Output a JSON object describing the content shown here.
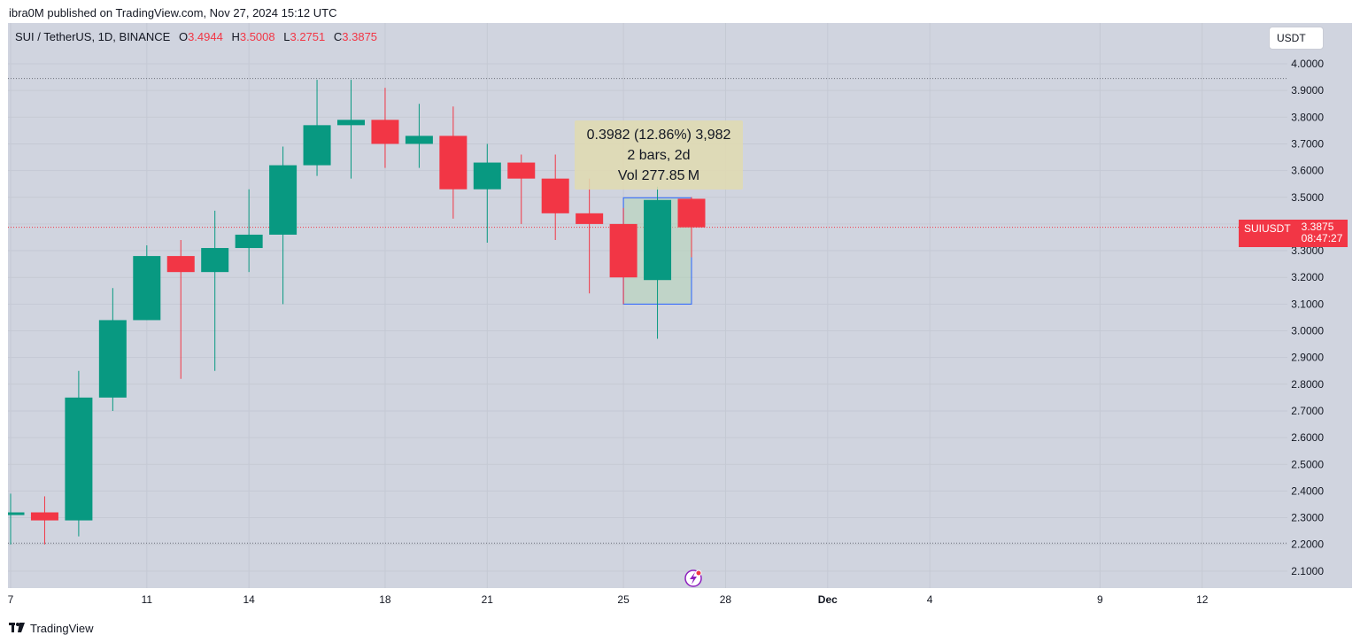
{
  "header": {
    "published": "ibra0M published on TradingView.com, Nov 27, 2024 15:12 UTC"
  },
  "legend": {
    "symbol": "SUI / TetherUS, 1D, BINANCE",
    "o_label": "O",
    "o_value": "3.4944",
    "h_label": "H",
    "h_value": "3.5008",
    "l_label": "L",
    "l_value": "3.2751",
    "c_label": "C",
    "c_value": "3.3875"
  },
  "currency_button": "USDT",
  "measure": {
    "line1": "0.3982 (12.86%) 3,982",
    "line2": "2 bars, 2d",
    "line3": "Vol 277.85 M"
  },
  "price_tag": {
    "symbol": "SUIUSDT",
    "price": "3.3875",
    "countdown": "08:47:27"
  },
  "footer": {
    "brand": "TradingView",
    "logo": "tradingview-logo-icon"
  },
  "colors": {
    "up": "#089981",
    "down": "#f23645",
    "background": "#d0d4df",
    "grid": "#c5c9d4"
  },
  "chart_data": {
    "type": "candlestick",
    "yticks": [
      "4.0000",
      "3.9000",
      "3.8000",
      "3.7000",
      "3.6000",
      "3.5000",
      "3.4000",
      "3.3000",
      "3.2000",
      "3.1000",
      "3.0000",
      "2.9000",
      "2.8000",
      "2.7000",
      "2.6000",
      "2.5000",
      "2.4000",
      "2.3000",
      "2.2000",
      "2.1000"
    ],
    "ylim": [
      2.05,
      4.05
    ],
    "xticks": [
      {
        "label": "7",
        "day": 7
      },
      {
        "label": "11",
        "day": 11
      },
      {
        "label": "14",
        "day": 14
      },
      {
        "label": "18",
        "day": 18
      },
      {
        "label": "21",
        "day": 21
      },
      {
        "label": "25",
        "day": 25
      },
      {
        "label": "28",
        "day": 28
      },
      {
        "label": "Dec",
        "day": 31,
        "bold": true
      },
      {
        "label": "4",
        "day": 34
      },
      {
        "label": "9",
        "day": 39
      },
      {
        "label": "12",
        "day": 42
      }
    ],
    "candles": [
      {
        "day": 7,
        "o": 2.31,
        "h": 2.39,
        "l": 2.2,
        "c": 2.32
      },
      {
        "day": 8,
        "o": 2.32,
        "h": 2.38,
        "l": 2.2,
        "c": 2.29
      },
      {
        "day": 9,
        "o": 2.29,
        "h": 2.85,
        "l": 2.23,
        "c": 2.75
      },
      {
        "day": 10,
        "o": 2.75,
        "h": 3.16,
        "l": 2.7,
        "c": 3.04
      },
      {
        "day": 11,
        "o": 3.04,
        "h": 3.32,
        "l": 3.04,
        "c": 3.28
      },
      {
        "day": 12,
        "o": 3.28,
        "h": 3.34,
        "l": 2.82,
        "c": 3.22
      },
      {
        "day": 13,
        "o": 3.22,
        "h": 3.45,
        "l": 2.85,
        "c": 3.31
      },
      {
        "day": 14,
        "o": 3.31,
        "h": 3.53,
        "l": 3.22,
        "c": 3.36
      },
      {
        "day": 15,
        "o": 3.36,
        "h": 3.69,
        "l": 3.1,
        "c": 3.62
      },
      {
        "day": 16,
        "o": 3.62,
        "h": 3.94,
        "l": 3.58,
        "c": 3.77
      },
      {
        "day": 17,
        "o": 3.77,
        "h": 3.94,
        "l": 3.57,
        "c": 3.79
      },
      {
        "day": 18,
        "o": 3.79,
        "h": 3.91,
        "l": 3.61,
        "c": 3.7
      },
      {
        "day": 19,
        "o": 3.7,
        "h": 3.85,
        "l": 3.61,
        "c": 3.73
      },
      {
        "day": 20,
        "o": 3.73,
        "h": 3.84,
        "l": 3.42,
        "c": 3.53
      },
      {
        "day": 21,
        "o": 3.53,
        "h": 3.7,
        "l": 3.33,
        "c": 3.63
      },
      {
        "day": 22,
        "o": 3.63,
        "h": 3.66,
        "l": 3.4,
        "c": 3.57
      },
      {
        "day": 23,
        "o": 3.57,
        "h": 3.66,
        "l": 3.34,
        "c": 3.44
      },
      {
        "day": 24,
        "o": 3.44,
        "h": 3.57,
        "l": 3.14,
        "c": 3.4
      },
      {
        "day": 25,
        "o": 3.4,
        "h": 3.46,
        "l": 3.1,
        "c": 3.2
      },
      {
        "day": 26,
        "o": 3.19,
        "h": 3.54,
        "l": 2.97,
        "c": 3.49
      },
      {
        "day": 27,
        "o": 3.4944,
        "h": 3.5008,
        "l": 3.2751,
        "c": 3.3875
      }
    ],
    "hlines": [
      3.945,
      2.205
    ],
    "current_price": 3.3875,
    "measure_box": {
      "day_start": 25,
      "day_end": 27,
      "price_low": 3.1,
      "price_high": 3.4982
    }
  }
}
